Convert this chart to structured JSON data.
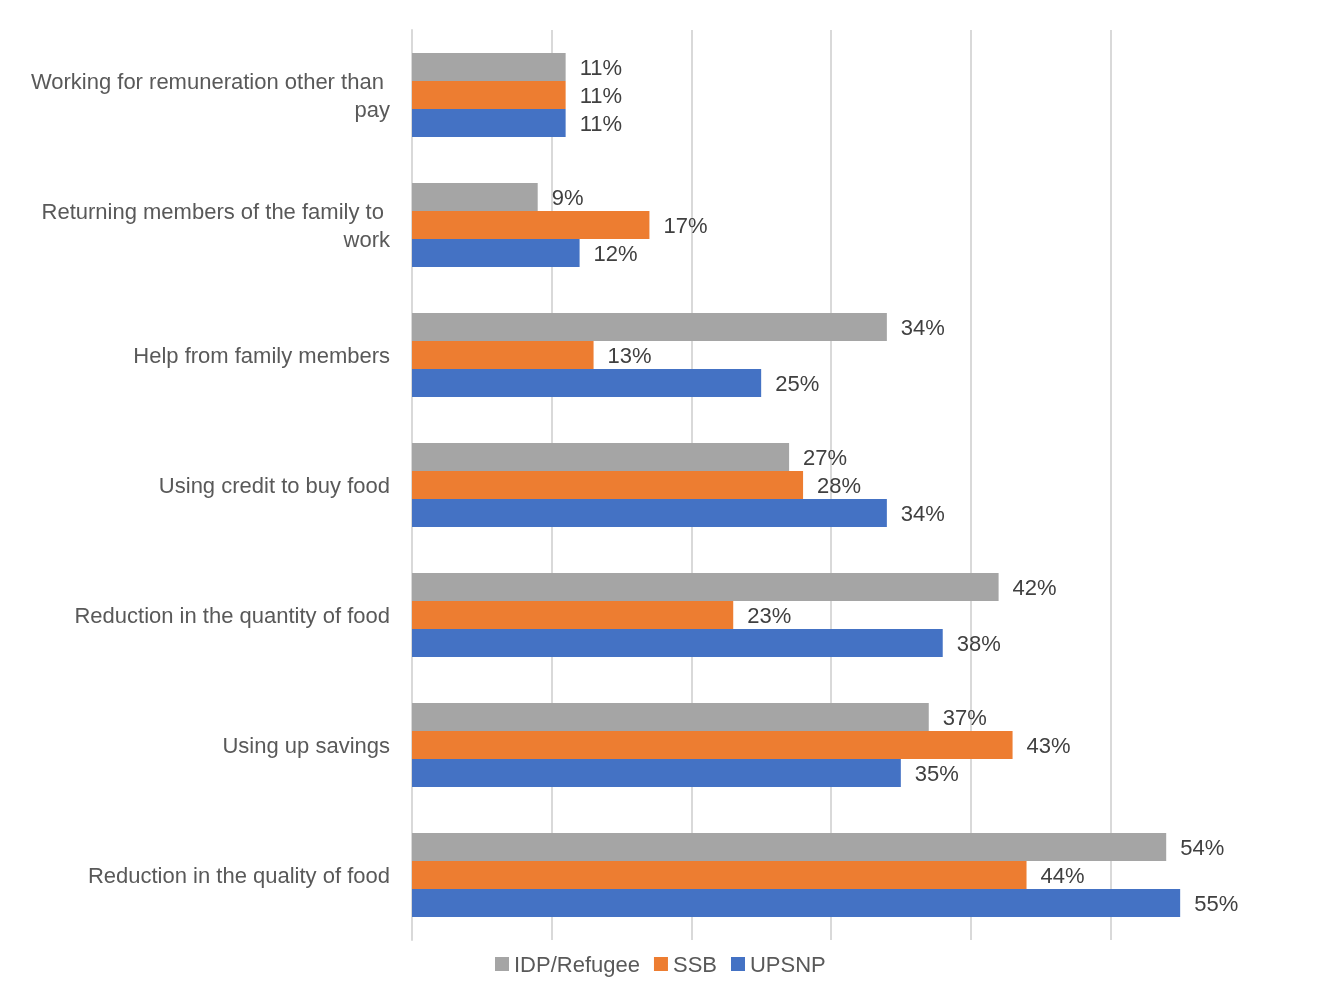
{
  "chart_data": {
    "type": "bar",
    "orientation": "horizontal",
    "categories": [
      "Working for remuneration other than pay",
      "Returning members of the family to work",
      "Help from family members",
      "Using credit to buy food",
      "Reduction in the quantity of food",
      "Using up savings",
      "Reduction in the quality of food"
    ],
    "series": [
      {
        "name": "IDP/Refugee",
        "color": "#a5a5a5",
        "values": [
          11,
          9,
          34,
          27,
          42,
          37,
          54
        ],
        "value_labels": [
          "11%",
          "9%",
          "34%",
          "27%",
          "42%",
          "37%",
          "54%"
        ]
      },
      {
        "name": "SSB",
        "color": "#ed7d31",
        "values": [
          11,
          17,
          13,
          28,
          23,
          43,
          44
        ],
        "value_labels": [
          "11%",
          "17%",
          "13%",
          "28%",
          "23%",
          "43%",
          "44%"
        ]
      },
      {
        "name": "UPSNP",
        "color": "#4472c4",
        "values": [
          11,
          12,
          25,
          34,
          38,
          35,
          55
        ],
        "value_labels": [
          "11%",
          "12%",
          "25%",
          "34%",
          "38%",
          "35%",
          "55%"
        ]
      }
    ],
    "xticks": [
      {
        "value": 0,
        "label": null
      },
      {
        "value": 10,
        "label": null
      },
      {
        "value": 20,
        "label": null
      },
      {
        "value": 30,
        "label": null
      },
      {
        "value": 40,
        "label": null
      },
      {
        "value": 50,
        "label": null
      }
    ],
    "grid": "x",
    "legend": "bottom",
    "tick_labels": "y"
  }
}
